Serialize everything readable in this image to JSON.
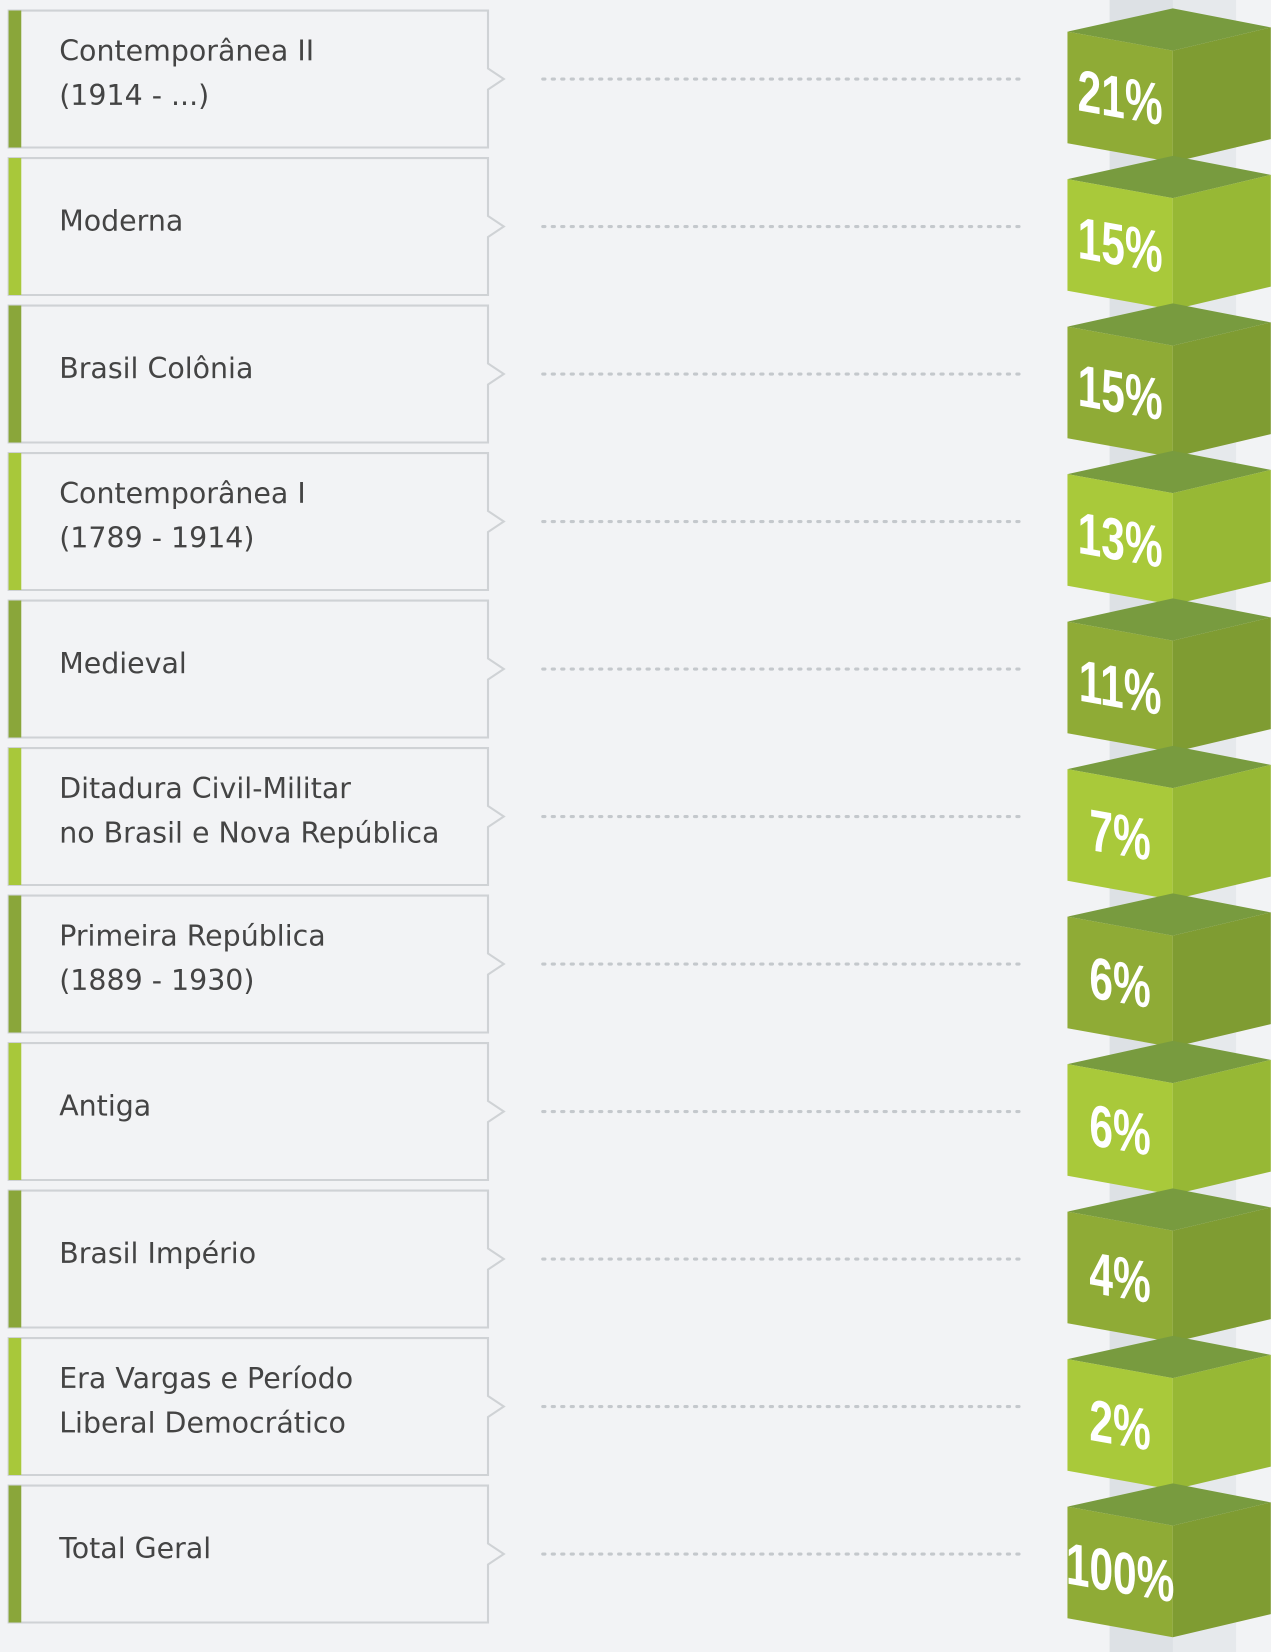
{
  "items": [
    {
      "label": [
        "Contemporânea II",
        "(1914 - ...)"
      ],
      "value": "21%"
    },
    {
      "label": [
        "Moderna"
      ],
      "value": "15%"
    },
    {
      "label": [
        "Brasil Colônia"
      ],
      "value": "15%"
    },
    {
      "label": [
        "Contemporânea I",
        "(1789 - 1914)"
      ],
      "value": "13%"
    },
    {
      "label": [
        "Medieval"
      ],
      "value": "11%"
    },
    {
      "label": [
        "Ditadura Civil-Militar",
        "no Brasil e Nova República"
      ],
      "value": "7%"
    },
    {
      "label": [
        "Primeira República",
        "(1889 - 1930)"
      ],
      "value": "6%"
    },
    {
      "label": [
        "Antiga"
      ],
      "value": "6%"
    },
    {
      "label": [
        "Brasil Império"
      ],
      "value": "4%"
    },
    {
      "label": [
        "Era Vargas e Período",
        "Liberal Democrático"
      ],
      "value": "2%"
    },
    {
      "label": [
        "Total Geral"
      ],
      "value": "100%"
    }
  ]
}
